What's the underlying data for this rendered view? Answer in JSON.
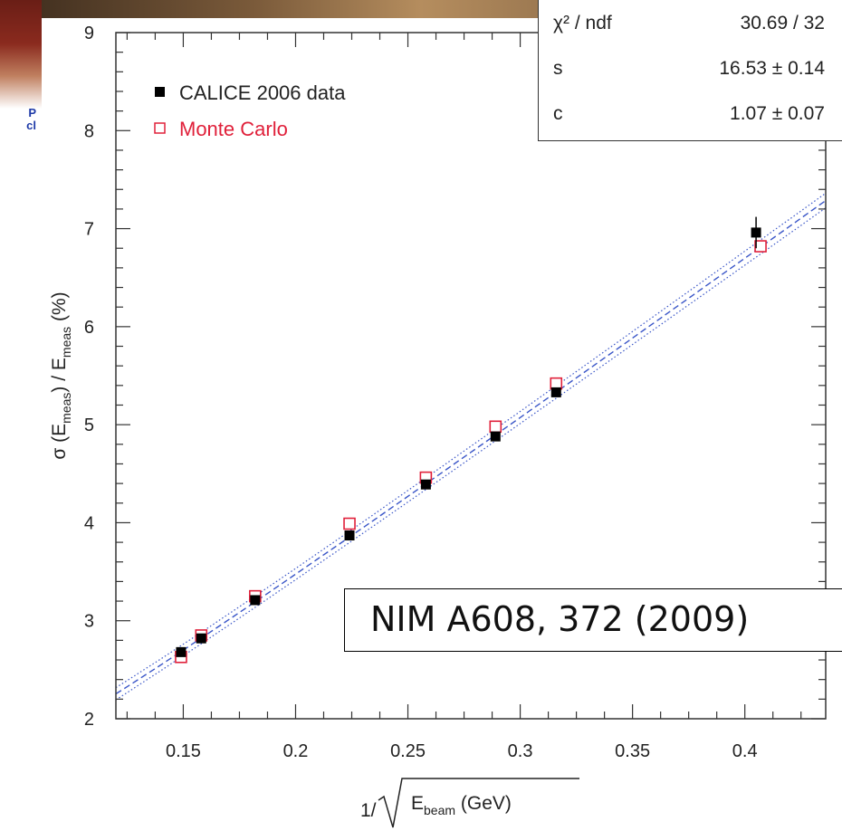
{
  "left_fragment": [
    "P",
    "cl"
  ],
  "stats_box": {
    "rows": [
      {
        "name": "χ² / ndf",
        "value": "30.69 / 32"
      },
      {
        "name": "s",
        "value": "16.53 ± 0.14"
      },
      {
        "name": "c",
        "value": "1.07 ± 0.07"
      }
    ]
  },
  "citation": "NIM A608, 372 (2009)",
  "chart_data": {
    "type": "scatter",
    "ylabel": "σ (E_meas) / E_meas  (%)",
    "xlabel": "1/ √E_beam (GeV)",
    "xlim": [
      0.12,
      0.436
    ],
    "ylim": [
      2,
      9
    ],
    "xticks": [
      "0.15",
      "0.2",
      "0.25",
      "0.3",
      "0.35",
      "0.4"
    ],
    "yticks": [
      "2",
      "3",
      "4",
      "5",
      "6",
      "7",
      "8",
      "9"
    ],
    "grid": false,
    "legend": {
      "position": "top-left",
      "entries": [
        {
          "label": "CALICE 2006  data",
          "marker": "filled-square",
          "color": "#000000"
        },
        {
          "label": "Monte Carlo",
          "marker": "open-square",
          "color": "#e0203a"
        }
      ]
    },
    "series": [
      {
        "name": "CALICE 2006  data",
        "color": "#000000",
        "points": [
          {
            "x": 0.149,
            "y": 2.68
          },
          {
            "x": 0.158,
            "y": 2.82
          },
          {
            "x": 0.182,
            "y": 3.21
          },
          {
            "x": 0.224,
            "y": 3.87
          },
          {
            "x": 0.258,
            "y": 4.39
          },
          {
            "x": 0.289,
            "y": 4.88
          },
          {
            "x": 0.316,
            "y": 5.33
          },
          {
            "x": 0.405,
            "y": 6.96,
            "err": 0.16
          }
        ]
      },
      {
        "name": "Monte Carlo",
        "color": "#e0203a",
        "points": [
          {
            "x": 0.149,
            "y": 2.63
          },
          {
            "x": 0.158,
            "y": 2.85
          },
          {
            "x": 0.182,
            "y": 3.25
          },
          {
            "x": 0.224,
            "y": 3.99
          },
          {
            "x": 0.258,
            "y": 4.46
          },
          {
            "x": 0.289,
            "y": 4.98
          },
          {
            "x": 0.316,
            "y": 5.42
          },
          {
            "x": 0.407,
            "y": 6.82
          }
        ]
      }
    ],
    "fit": {
      "color": "#3a56c8",
      "s": 16.53,
      "c": 1.07,
      "band": 0.1
    }
  }
}
